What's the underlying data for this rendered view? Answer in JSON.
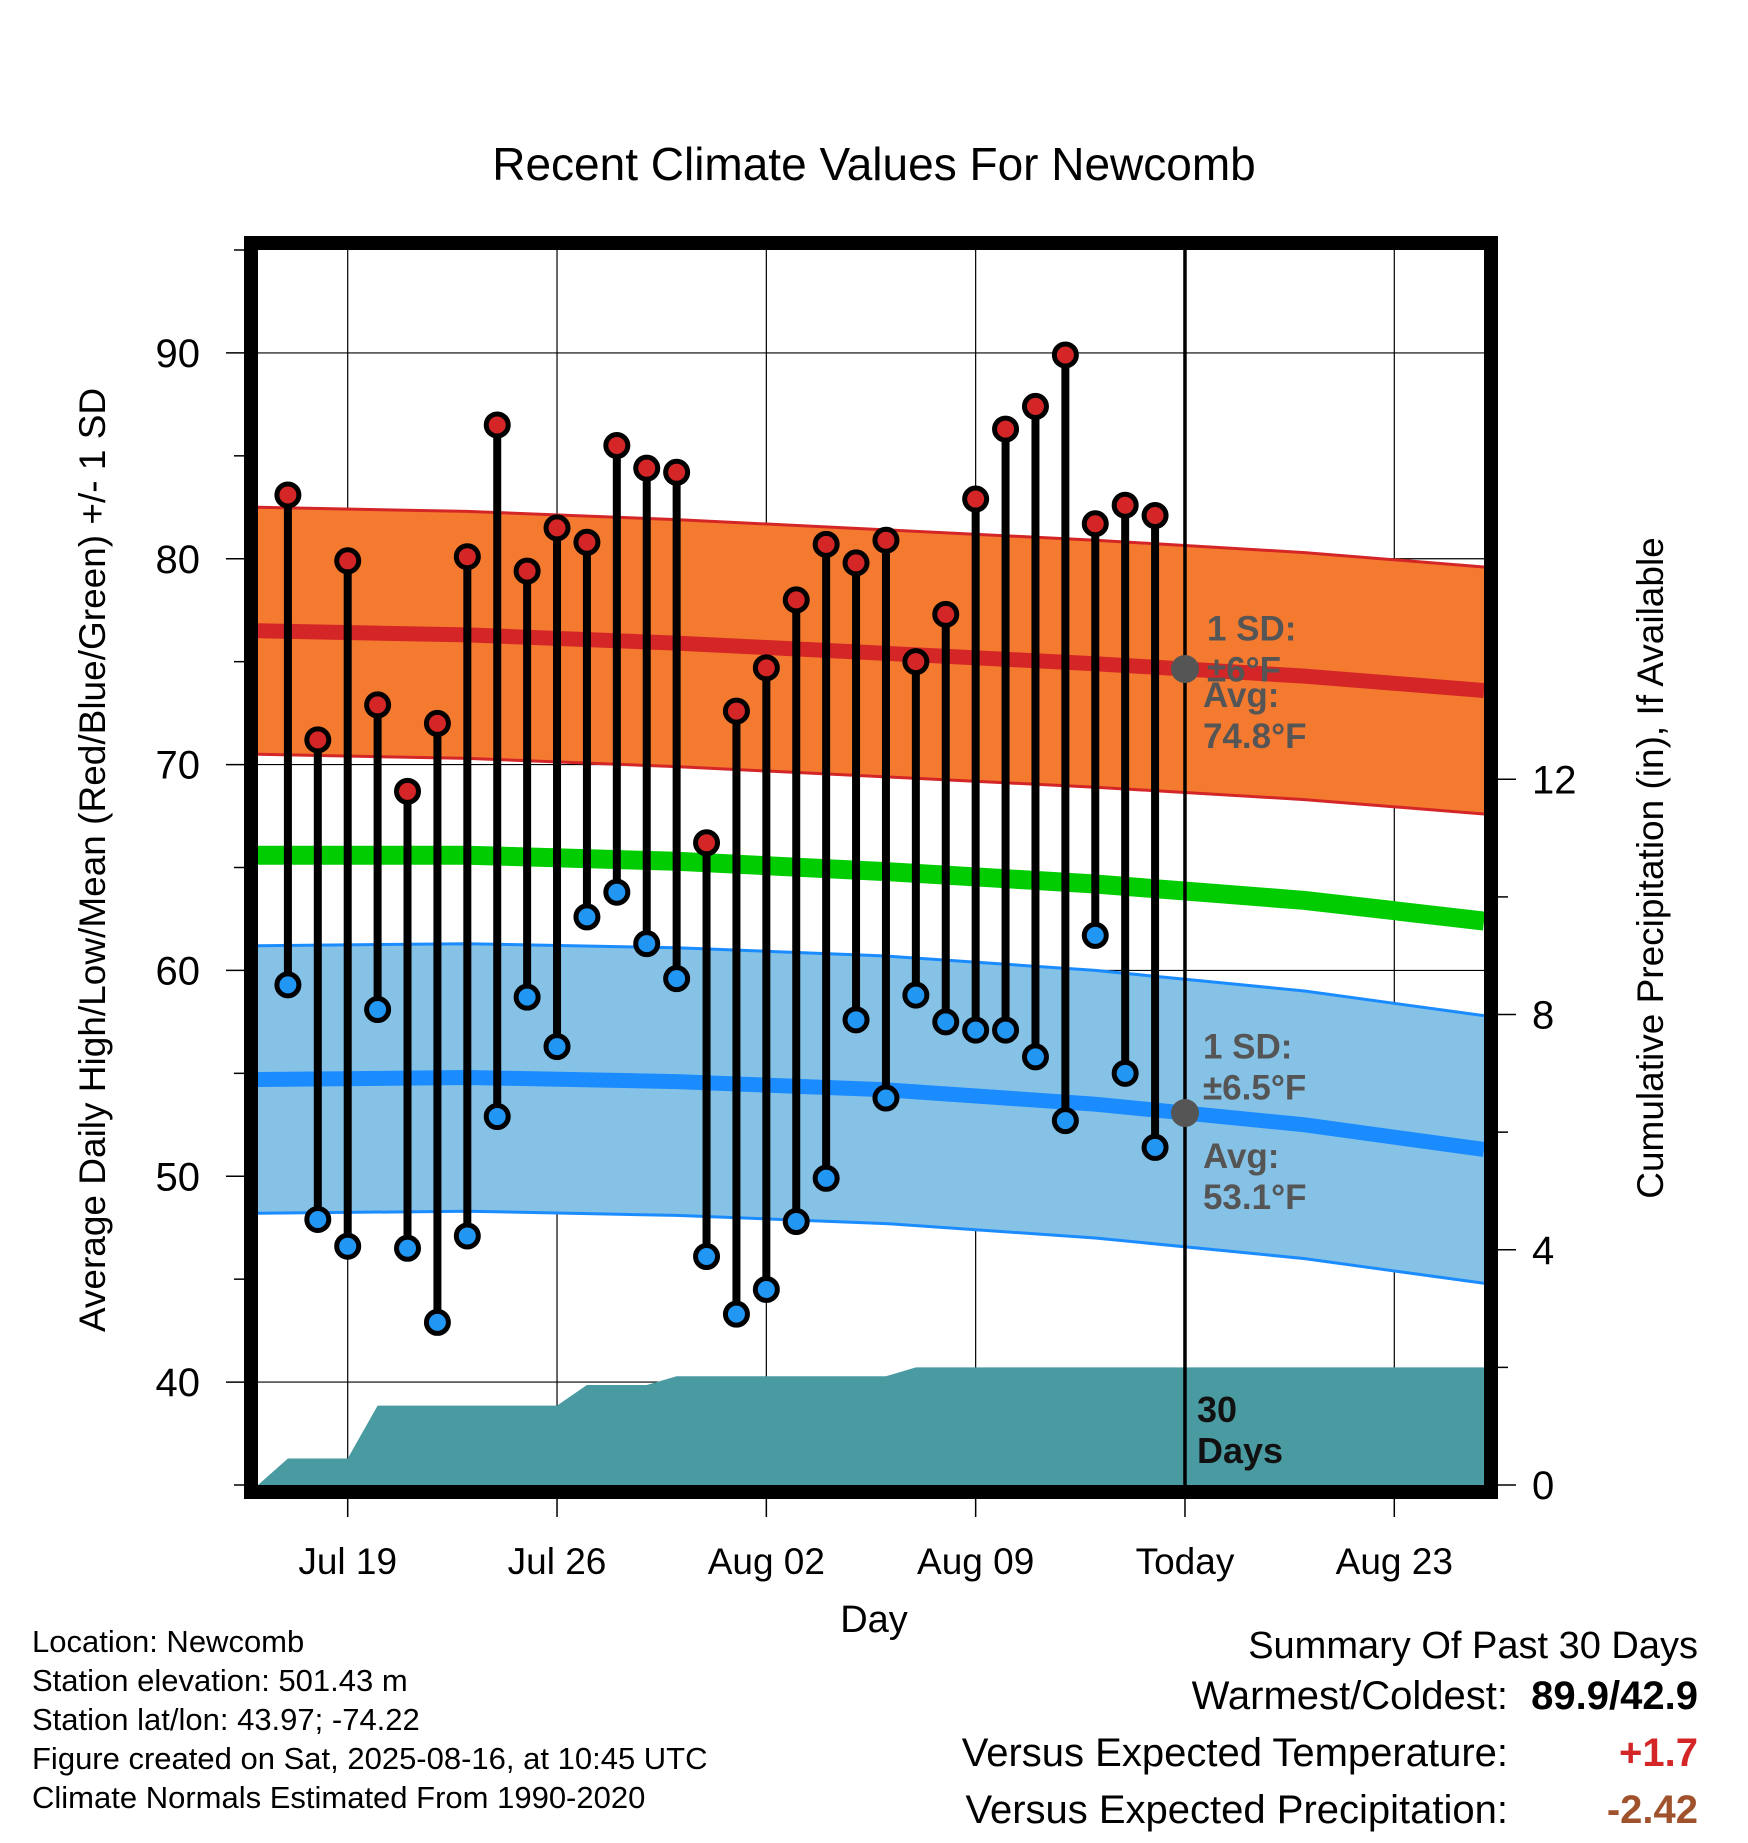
{
  "chart_data": {
    "type": "line",
    "title": "Recent Climate Values For Newcomb",
    "xlabel": "Day",
    "ylabel_left": "Average Daily High/Low/Mean (Red/Blue/Green) +/- 1 SD",
    "ylabel_right": "Cumulative Precipitation (in), If Available",
    "x_range": [
      "2025-07-16",
      "2025-08-26"
    ],
    "ylim": [
      35,
      95
    ],
    "y_ticks": [
      40,
      50,
      60,
      70,
      80,
      90
    ],
    "precip_ylim": [
      0,
      21
    ],
    "precip_ticks": [
      0,
      4,
      8,
      12
    ],
    "x_ticks": [
      {
        "date": "2025-07-19",
        "label": "Jul 19"
      },
      {
        "date": "2025-07-26",
        "label": "Jul 26"
      },
      {
        "date": "2025-08-02",
        "label": "Aug 02"
      },
      {
        "date": "2025-08-09",
        "label": "Aug 09"
      },
      {
        "date": "2025-08-16",
        "label": "Today"
      },
      {
        "date": "2025-08-23",
        "label": "Aug 23"
      }
    ],
    "today": "2025-08-16",
    "grid": true,
    "daily": {
      "dates": [
        "2025-07-17",
        "2025-07-18",
        "2025-07-19",
        "2025-07-20",
        "2025-07-21",
        "2025-07-22",
        "2025-07-23",
        "2025-07-24",
        "2025-07-25",
        "2025-07-26",
        "2025-07-27",
        "2025-07-28",
        "2025-07-29",
        "2025-07-30",
        "2025-07-31",
        "2025-08-01",
        "2025-08-02",
        "2025-08-03",
        "2025-08-04",
        "2025-08-05",
        "2025-08-06",
        "2025-08-07",
        "2025-08-08",
        "2025-08-09",
        "2025-08-10",
        "2025-08-11",
        "2025-08-12",
        "2025-08-13",
        "2025-08-14",
        "2025-08-15"
      ],
      "high": [
        83.1,
        71.2,
        79.9,
        72.9,
        68.7,
        72.0,
        80.1,
        86.5,
        79.4,
        81.5,
        80.8,
        85.5,
        84.4,
        84.2,
        66.2,
        72.6,
        74.7,
        78.0,
        80.7,
        79.8,
        80.9,
        75.0,
        77.3,
        82.9,
        86.3,
        87.4,
        89.9,
        81.7,
        82.6,
        82.1
      ],
      "low": [
        59.3,
        47.9,
        46.6,
        58.1,
        46.5,
        42.9,
        47.1,
        52.9,
        58.7,
        56.3,
        62.6,
        63.8,
        61.3,
        59.6,
        46.1,
        43.3,
        44.5,
        47.8,
        49.9,
        57.6,
        53.8,
        58.8,
        57.5,
        57.1,
        57.1,
        55.8,
        52.7,
        61.7,
        55.0,
        51.4
      ]
    },
    "normals": {
      "dates": [
        "2025-07-16",
        "2025-07-23",
        "2025-07-30",
        "2025-08-06",
        "2025-08-13",
        "2025-08-20",
        "2025-08-26"
      ],
      "high_avg": [
        76.5,
        76.3,
        75.9,
        75.4,
        74.9,
        74.3,
        73.6
      ],
      "high_sd": 6,
      "low_avg": [
        54.7,
        54.8,
        54.6,
        54.2,
        53.5,
        52.5,
        51.3
      ],
      "low_sd": 6.5,
      "mean_avg": [
        65.6,
        65.6,
        65.3,
        64.8,
        64.2,
        63.4,
        62.4
      ]
    },
    "precip": {
      "dates": [
        "2025-07-16",
        "2025-07-17",
        "2025-07-19",
        "2025-07-20",
        "2025-07-26",
        "2025-07-27",
        "2025-07-29",
        "2025-07-30",
        "2025-08-06",
        "2025-08-07",
        "2025-08-26"
      ],
      "cumulative": [
        0,
        0.45,
        0.45,
        1.35,
        1.35,
        1.7,
        1.7,
        1.85,
        1.85,
        2.0,
        2.0
      ]
    },
    "annotations": {
      "high_sd_label": "1 SD:",
      "high_sd_value": "±6°F",
      "high_avg_label": "Avg:",
      "high_avg_value": "74.8°F",
      "low_sd_label": "1 SD:",
      "low_sd_value": "±6.5°F",
      "low_avg_label": "Avg:",
      "low_avg_value": "53.1°F",
      "precip_days_1": "30",
      "precip_days_2": "Days"
    },
    "colors": {
      "high_band": "#f47a30",
      "high_line": "#d42626",
      "low_band": "#85c2e6",
      "low_line": "#1a8cff",
      "mean_line": "#00cc00",
      "precip": "#4a9aa2",
      "high_marker": "#d42626",
      "low_marker": "#2196f3",
      "annotation": "#555555"
    }
  },
  "footer": {
    "location": "Location: Newcomb",
    "elevation": "Station elevation: 501.43 m",
    "latlon": "Station lat/lon: 43.97; -74.22",
    "created": "Figure created on Sat, 2025-08-16, at 10:45 UTC",
    "normals": "Climate Normals Estimated From 1990-2020"
  },
  "summary": {
    "header": "Summary Of Past 30 Days",
    "warmest_label": "Warmest/Coldest:",
    "warmest_value": "89.9/42.9",
    "temp_label": "Versus Expected Temperature:",
    "temp_value": "+1.7",
    "temp_color": "#d42626",
    "precip_label": "Versus Expected Precipitation:",
    "precip_value": "-2.42",
    "precip_color": "#a0522d"
  }
}
